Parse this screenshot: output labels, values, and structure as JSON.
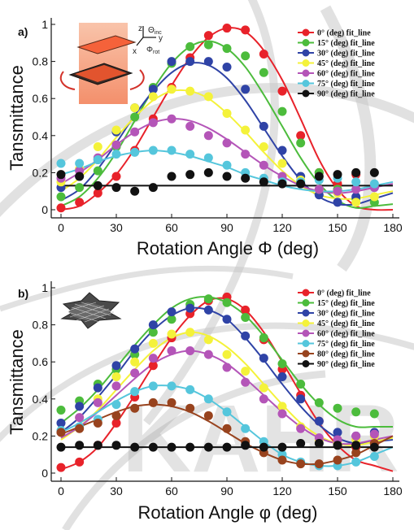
{
  "watermark": "KAHR",
  "inset_a": {
    "z": "z",
    "y": "y",
    "x": "x",
    "theta": "Θ",
    "theta_sub": "inc",
    "phi": "Φ",
    "phi_sub": "rot"
  },
  "colors": {
    "0": "#e8222a",
    "15": "#4cbc3c",
    "30": "#2f43a6",
    "45": "#f4f23a",
    "60": "#b455b8",
    "75": "#55c6dc",
    "80": "#98431e",
    "90": "#111111"
  },
  "chart_data": [
    {
      "panel": "a)",
      "type": "scatter",
      "xlabel": "Rotation Angle Φ (deg)",
      "ylabel": "Tansmittance",
      "xlim": [
        0,
        180
      ],
      "ylim": [
        0,
        1
      ],
      "xticks": [
        "0",
        "30",
        "60",
        "90",
        "120",
        "150",
        "180"
      ],
      "yticks": [
        "0",
        "0.2",
        "0.4",
        "0.6",
        "0.8",
        "1"
      ],
      "legend_position": "top-right",
      "series": [
        {
          "name": "0° (deg) fit_line",
          "key": "0",
          "x": [
            0,
            10,
            20,
            30,
            40,
            50,
            60,
            70,
            80,
            90,
            100,
            110,
            120,
            130,
            140,
            150,
            160,
            170
          ],
          "y": [
            0.01,
            0.04,
            0.09,
            0.18,
            0.32,
            0.49,
            0.66,
            0.82,
            0.94,
            0.98,
            0.97,
            0.84,
            0.64,
            0.4,
            0.2,
            0.14,
            0.19,
            0.13
          ],
          "fit": [
            0.0,
            0.02,
            0.09,
            0.19,
            0.33,
            0.5,
            0.67,
            0.82,
            0.93,
            0.98,
            0.96,
            0.86,
            0.7,
            0.49,
            0.27,
            0.11,
            0.02,
            0.0
          ]
        },
        {
          "name": "15° (deg) fit_line",
          "key": "15",
          "x": [
            0,
            10,
            20,
            30,
            40,
            50,
            60,
            70,
            80,
            90,
            100,
            110,
            120,
            130,
            140,
            150,
            160,
            170
          ],
          "y": [
            0.07,
            0.12,
            0.21,
            0.34,
            0.5,
            0.66,
            0.79,
            0.88,
            0.89,
            0.87,
            0.83,
            0.74,
            0.53,
            0.36,
            0.2,
            0.11,
            0.06,
            0.04
          ],
          "fit": [
            0.02,
            0.07,
            0.17,
            0.31,
            0.48,
            0.65,
            0.79,
            0.88,
            0.91,
            0.87,
            0.77,
            0.62,
            0.45,
            0.28,
            0.14,
            0.05,
            0.01,
            0.02
          ]
        },
        {
          "name": "30° (deg) fit_line",
          "key": "30",
          "x": [
            0,
            10,
            20,
            30,
            40,
            50,
            60,
            70,
            80,
            90,
            100,
            110,
            120,
            130,
            140,
            150,
            160,
            170
          ],
          "y": [
            0.12,
            0.18,
            0.27,
            0.42,
            0.55,
            0.65,
            0.8,
            0.8,
            0.8,
            0.77,
            0.65,
            0.45,
            0.32,
            0.18,
            0.08,
            0.04,
            0.07,
            0.12
          ],
          "fit": [
            0.05,
            0.11,
            0.22,
            0.36,
            0.51,
            0.64,
            0.74,
            0.79,
            0.78,
            0.71,
            0.59,
            0.44,
            0.29,
            0.16,
            0.07,
            0.03,
            0.03,
            0.06
          ]
        },
        {
          "name": "45° (deg) fit_line",
          "key": "45",
          "x": [
            0,
            10,
            20,
            30,
            40,
            50,
            60,
            70,
            80,
            90,
            100,
            110,
            120,
            130,
            140,
            150,
            160,
            170
          ],
          "y": [
            0.15,
            0.22,
            0.34,
            0.43,
            0.55,
            0.61,
            0.65,
            0.64,
            0.61,
            0.52,
            0.43,
            0.34,
            0.25,
            0.16,
            0.11,
            0.09,
            0.04,
            0.07
          ],
          "fit": [
            0.1,
            0.17,
            0.27,
            0.39,
            0.5,
            0.59,
            0.64,
            0.64,
            0.6,
            0.52,
            0.42,
            0.31,
            0.21,
            0.13,
            0.08,
            0.06,
            0.06,
            0.08
          ]
        },
        {
          "name": "60° (deg) fit_line",
          "key": "60",
          "x": [
            0,
            10,
            20,
            30,
            40,
            50,
            60,
            70,
            80,
            90,
            100,
            110,
            120,
            130,
            140,
            150,
            160,
            170
          ],
          "y": [
            0.17,
            0.21,
            0.28,
            0.35,
            0.42,
            0.47,
            0.49,
            0.45,
            0.4,
            0.36,
            0.3,
            0.24,
            0.18,
            0.14,
            0.11,
            0.1,
            0.11,
            0.12
          ],
          "fit": [
            0.14,
            0.2,
            0.27,
            0.35,
            0.42,
            0.47,
            0.49,
            0.48,
            0.44,
            0.38,
            0.31,
            0.24,
            0.18,
            0.13,
            0.1,
            0.09,
            0.1,
            0.12
          ]
        },
        {
          "name": "75° (deg) fit_line",
          "key": "75",
          "x": [
            0,
            10,
            20,
            30,
            40,
            50,
            60,
            70,
            80,
            90,
            100,
            110,
            120,
            130,
            140,
            150,
            160,
            170
          ],
          "y": [
            0.25,
            0.25,
            0.27,
            0.3,
            0.31,
            0.32,
            0.32,
            0.3,
            0.28,
            0.24,
            0.2,
            0.17,
            0.15,
            0.15,
            0.16,
            0.17,
            0.15,
            0.14
          ],
          "fit": [
            0.19,
            0.22,
            0.26,
            0.29,
            0.31,
            0.32,
            0.31,
            0.29,
            0.26,
            0.23,
            0.19,
            0.16,
            0.13,
            0.11,
            0.1,
            0.1,
            0.11,
            0.13
          ]
        },
        {
          "name": "90° (deg) fit_line",
          "key": "90",
          "x": [
            0,
            10,
            20,
            30,
            40,
            50,
            60,
            70,
            80,
            90,
            100,
            110,
            120,
            130,
            140,
            150,
            160,
            170
          ],
          "y": [
            0.19,
            0.18,
            0.13,
            0.12,
            0.1,
            0.12,
            0.18,
            0.19,
            0.2,
            0.18,
            0.17,
            0.15,
            0.14,
            0.14,
            0.18,
            0.19,
            0.2,
            0.2
          ],
          "fit": [
            0.13,
            0.13,
            0.13,
            0.13,
            0.13,
            0.13,
            0.13,
            0.13,
            0.13,
            0.13,
            0.13,
            0.13,
            0.13,
            0.13,
            0.13,
            0.13,
            0.13,
            0.13
          ]
        }
      ]
    },
    {
      "panel": "b)",
      "type": "scatter",
      "xlabel": "Rotation Angle φ (deg)",
      "ylabel": "Tansmittance",
      "xlim": [
        0,
        180
      ],
      "ylim": [
        0,
        1
      ],
      "xticks": [
        "0",
        "30",
        "60",
        "90",
        "120",
        "150",
        "180"
      ],
      "yticks": [
        "0",
        "0.2",
        "0.4",
        "0.6",
        "0.8",
        "1"
      ],
      "legend_position": "top-right",
      "series": [
        {
          "name": "0° (deg) fit_line",
          "key": "0",
          "x": [
            0,
            10,
            20,
            30,
            40,
            50,
            60,
            70,
            80,
            90,
            100,
            110,
            120,
            130,
            140,
            150,
            160,
            170
          ],
          "y": [
            0.03,
            0.06,
            0.15,
            0.27,
            0.41,
            0.58,
            0.73,
            0.86,
            0.93,
            0.95,
            0.88,
            0.72,
            0.56,
            0.42,
            0.28,
            0.18,
            0.14,
            0.16
          ],
          "fit": [
            0.02,
            0.06,
            0.14,
            0.27,
            0.42,
            0.58,
            0.73,
            0.85,
            0.93,
            0.94,
            0.88,
            0.76,
            0.6,
            0.43,
            0.27,
            0.15,
            0.07,
            0.04
          ]
        },
        {
          "name": "15° (deg) fit_line",
          "key": "15",
          "x": [
            0,
            10,
            20,
            30,
            40,
            50,
            60,
            70,
            80,
            90,
            100,
            110,
            120,
            130,
            140,
            150,
            160,
            170
          ],
          "y": [
            0.34,
            0.39,
            0.48,
            0.56,
            0.64,
            0.76,
            0.83,
            0.91,
            0.94,
            0.92,
            0.84,
            0.73,
            0.59,
            0.48,
            0.38,
            0.35,
            0.33,
            0.32
          ],
          "fit": [
            0.27,
            0.35,
            0.45,
            0.57,
            0.69,
            0.8,
            0.89,
            0.94,
            0.95,
            0.92,
            0.85,
            0.74,
            0.61,
            0.48,
            0.37,
            0.29,
            0.25,
            0.25
          ]
        },
        {
          "name": "30° (deg) fit_line",
          "key": "30",
          "x": [
            0,
            10,
            20,
            30,
            40,
            50,
            60,
            70,
            80,
            90,
            100,
            110,
            120,
            130,
            140,
            150,
            160,
            170
          ],
          "y": [
            0.27,
            0.36,
            0.46,
            0.58,
            0.67,
            0.8,
            0.87,
            0.89,
            0.88,
            0.83,
            0.74,
            0.62,
            0.52,
            0.4,
            0.28,
            0.22,
            0.2,
            0.22
          ],
          "fit": [
            0.22,
            0.3,
            0.41,
            0.53,
            0.66,
            0.77,
            0.85,
            0.89,
            0.88,
            0.83,
            0.73,
            0.61,
            0.48,
            0.36,
            0.26,
            0.19,
            0.16,
            0.17
          ]
        },
        {
          "name": "45° (deg) fit_line",
          "key": "45",
          "x": [
            0,
            10,
            20,
            30,
            40,
            50,
            60,
            70,
            80,
            90,
            100,
            110,
            120,
            130,
            140,
            150,
            160,
            170
          ],
          "y": [
            0.22,
            0.3,
            0.4,
            0.52,
            0.6,
            0.7,
            0.75,
            0.76,
            0.72,
            0.64,
            0.55,
            0.46,
            0.36,
            0.25,
            0.18,
            0.16,
            0.18,
            0.2
          ],
          "fit": [
            0.18,
            0.25,
            0.34,
            0.45,
            0.56,
            0.66,
            0.73,
            0.76,
            0.74,
            0.68,
            0.59,
            0.48,
            0.37,
            0.27,
            0.2,
            0.16,
            0.15,
            0.17
          ]
        },
        {
          "name": "60° (deg) fit_line",
          "key": "60",
          "x": [
            0,
            10,
            20,
            30,
            40,
            50,
            60,
            70,
            80,
            90,
            100,
            110,
            120,
            130,
            140,
            150,
            160,
            170
          ],
          "y": [
            0.22,
            0.3,
            0.38,
            0.47,
            0.54,
            0.62,
            0.66,
            0.66,
            0.64,
            0.57,
            0.49,
            0.4,
            0.32,
            0.24,
            0.19,
            0.18,
            0.2,
            0.21
          ],
          "fit": [
            0.19,
            0.25,
            0.33,
            0.42,
            0.51,
            0.59,
            0.64,
            0.66,
            0.64,
            0.59,
            0.51,
            0.42,
            0.33,
            0.25,
            0.19,
            0.16,
            0.16,
            0.18
          ]
        },
        {
          "name": "75° (deg) fit_line",
          "key": "75",
          "x": [
            0,
            10,
            20,
            30,
            40,
            50,
            60,
            70,
            80,
            90,
            100,
            110,
            120,
            130,
            140,
            150,
            160,
            170
          ],
          "y": [
            0.23,
            0.25,
            0.29,
            0.37,
            0.44,
            0.47,
            0.47,
            0.45,
            0.4,
            0.33,
            0.24,
            0.17,
            0.1,
            0.06,
            0.04,
            0.04,
            0.06,
            0.09
          ],
          "fit": [
            0.22,
            0.27,
            0.33,
            0.39,
            0.44,
            0.47,
            0.47,
            0.45,
            0.4,
            0.33,
            0.25,
            0.17,
            0.1,
            0.06,
            0.04,
            0.04,
            0.06,
            0.1
          ]
        },
        {
          "name": "80° (deg) fit_line",
          "key": "80",
          "x": [
            0,
            10,
            20,
            30,
            40,
            50,
            60,
            70,
            80,
            90,
            100,
            110,
            120,
            130,
            140,
            150,
            160,
            170
          ],
          "y": [
            0.22,
            0.24,
            0.27,
            0.31,
            0.35,
            0.38,
            0.38,
            0.35,
            0.31,
            0.24,
            0.17,
            0.11,
            0.07,
            0.05,
            0.05,
            0.07,
            0.11,
            0.16
          ],
          "fit": [
            0.21,
            0.25,
            0.29,
            0.33,
            0.36,
            0.37,
            0.36,
            0.33,
            0.28,
            0.22,
            0.16,
            0.11,
            0.07,
            0.05,
            0.05,
            0.07,
            0.1,
            0.15
          ]
        },
        {
          "name": "90° (deg) fit_line",
          "key": "90",
          "x": [
            0,
            10,
            20,
            30,
            40,
            50,
            60,
            70,
            80,
            90,
            100,
            110,
            120,
            130,
            140,
            150,
            160,
            170
          ],
          "y": [
            0.14,
            0.15,
            0.15,
            0.15,
            0.14,
            0.14,
            0.14,
            0.14,
            0.14,
            0.14,
            0.15,
            0.14,
            0.14,
            0.16,
            0.16,
            0.15,
            0.15,
            0.14
          ],
          "fit": [
            0.14,
            0.14,
            0.14,
            0.14,
            0.14,
            0.14,
            0.14,
            0.14,
            0.14,
            0.14,
            0.14,
            0.14,
            0.14,
            0.14,
            0.14,
            0.14,
            0.14,
            0.14
          ]
        }
      ]
    }
  ]
}
